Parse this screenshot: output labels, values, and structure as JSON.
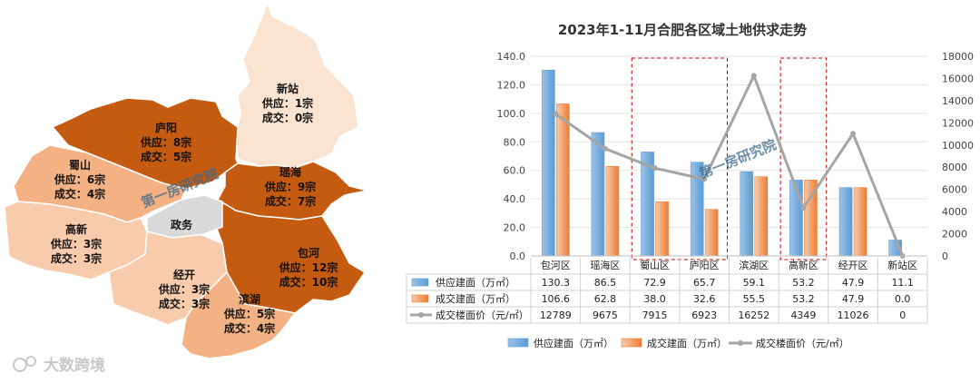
{
  "map": {
    "districts": [
      {
        "name": "新站",
        "supply": "供应：1宗",
        "deal": "成交：0宗",
        "fill": "#fbe3d2"
      },
      {
        "name": "庐阳",
        "supply": "供应：8宗",
        "deal": "成交：5宗",
        "fill": "#c55a11"
      },
      {
        "name": "蜀山",
        "supply": "供应：6宗",
        "deal": "成交：4宗",
        "fill": "#f4b183"
      },
      {
        "name": "瑶海",
        "supply": "供应：9宗",
        "deal": "成交：7宗",
        "fill": "#c55a11"
      },
      {
        "name": "高新",
        "supply": "供应：3宗",
        "deal": "成交：3宗",
        "fill": "#f8cbad"
      },
      {
        "name": "包河",
        "supply": "供应：12宗",
        "deal": "成交：10宗",
        "fill": "#c55a11"
      },
      {
        "name": "经开",
        "supply": "供应：3宗",
        "deal": "成交：3宗",
        "fill": "#f8cbad"
      },
      {
        "name": "滨湖",
        "supply": "供应：5宗",
        "deal": "成交：4宗",
        "fill": "#f4b183"
      }
    ],
    "center_label": "政务",
    "watermark": "第一房研究院",
    "brand": "大数跨境"
  },
  "chart_data": {
    "type": "bar",
    "title": "2023年1-11月合肥各区域土地供求走势",
    "categories": [
      "包河区",
      "瑶海区",
      "蜀山区",
      "庐阳区",
      "滨湖区",
      "高新区",
      "经开区",
      "新站区"
    ],
    "series": [
      {
        "name": "供应建面（万㎡）",
        "values": [
          130.3,
          86.5,
          72.9,
          65.7,
          59.1,
          53.2,
          47.9,
          11.1
        ],
        "color": "#5b9bd5",
        "axis": "left",
        "kind": "bar"
      },
      {
        "name": "成交建面（万㎡）",
        "values": [
          106.6,
          62.8,
          38.0,
          32.6,
          55.5,
          53.2,
          47.9,
          0.0
        ],
        "color": "#ed7d31",
        "axis": "left",
        "kind": "bar"
      },
      {
        "name": "成交楼面价（元/㎡）",
        "values": [
          12789,
          9675,
          7915,
          6923,
          16252,
          4349,
          11026,
          0
        ],
        "color": "#a5a5a5",
        "axis": "right",
        "kind": "line"
      }
    ],
    "table_values": [
      [
        "130.3",
        "86.5",
        "72.9",
        "65.7",
        "59.1",
        "53.2",
        "47.9",
        "11.1"
      ],
      [
        "106.6",
        "62.8",
        "38.0",
        "32.6",
        "55.5",
        "53.2",
        "47.9",
        "0.0"
      ],
      [
        "12789",
        "9675",
        "7915",
        "6923",
        "16252",
        "4349",
        "11026",
        "0"
      ]
    ],
    "y_left": {
      "min": 0,
      "max": 140,
      "ticks": [
        "0.0",
        "20.0",
        "40.0",
        "60.0",
        "80.0",
        "100.0",
        "120.0",
        "140.0"
      ]
    },
    "y_right": {
      "min": 0,
      "max": 18000,
      "ticks": [
        "0",
        "2000",
        "4000",
        "6000",
        "8000",
        "10000",
        "12000",
        "14000",
        "16000",
        "18000"
      ]
    },
    "highlight_groups": [
      [
        2,
        3
      ],
      [
        5,
        5
      ]
    ],
    "watermark": "第一房研究院"
  }
}
